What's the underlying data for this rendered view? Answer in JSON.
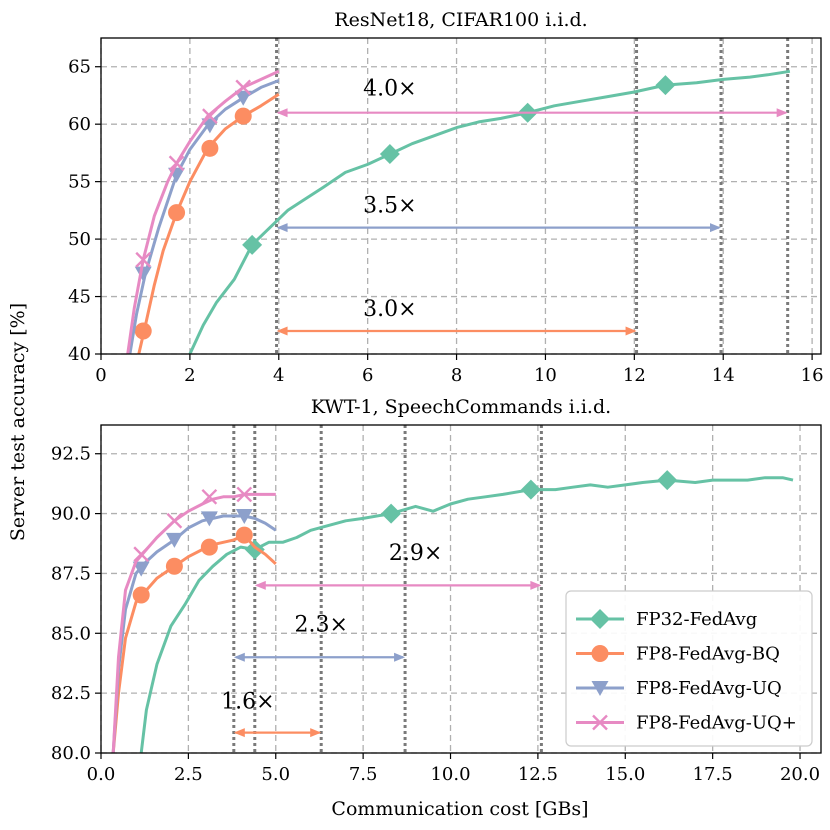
{
  "y_axis_label": "Server test accuracy [%]",
  "x_axis_label": "Communication cost [GBs]",
  "legend": {
    "position": "lower-right",
    "entries": [
      {
        "name": "FP32-FedAvg",
        "color": "#66c2a5",
        "marker": "diamond"
      },
      {
        "name": "FP8-FedAvg-BQ",
        "color": "#fc8d62",
        "marker": "circle"
      },
      {
        "name": "FP8-FedAvg-UQ",
        "color": "#8da0cb",
        "marker": "triangle-down"
      },
      {
        "name": "FP8-FedAvg-UQ+",
        "color": "#e78ac3",
        "marker": "x"
      }
    ]
  },
  "chart_data": [
    {
      "type": "line",
      "title": "ResNet18, CIFAR100 i.i.d.",
      "xlabel": "",
      "ylabel": "Server test accuracy [%]",
      "xlim": [
        0,
        16.2
      ],
      "ylim": [
        40,
        67.5
      ],
      "xticks": [
        0,
        2,
        4,
        6,
        8,
        10,
        12,
        14,
        16
      ],
      "yticks": [
        40,
        45,
        50,
        55,
        60,
        65
      ],
      "grid": true,
      "series": [
        {
          "name": "FP32-FedAvg",
          "color": "#66c2a5",
          "marker": "diamond",
          "x": [
            2.0,
            2.3,
            2.6,
            3.0,
            3.4,
            3.8,
            4.2,
            4.6,
            5.0,
            5.5,
            6.0,
            6.5,
            7.0,
            7.5,
            8.0,
            8.5,
            9.0,
            9.6,
            10.2,
            10.8,
            11.4,
            12.0,
            12.7,
            13.4,
            14.0,
            14.6,
            15.0,
            15.5
          ],
          "y": [
            40.0,
            42.5,
            44.5,
            46.5,
            49.5,
            51.0,
            52.5,
            53.5,
            54.5,
            55.8,
            56.5,
            57.4,
            58.3,
            59.0,
            59.7,
            60.2,
            60.5,
            61.0,
            61.6,
            62.0,
            62.4,
            62.8,
            63.4,
            63.6,
            63.9,
            64.1,
            64.3,
            64.6
          ],
          "marker_x": [
            3.4,
            6.5,
            9.6,
            12.7
          ],
          "marker_y": [
            49.5,
            57.4,
            61.0,
            63.4
          ]
        },
        {
          "name": "FP8-FedAvg-BQ",
          "color": "#fc8d62",
          "marker": "circle",
          "x": [
            0.85,
            1.0,
            1.2,
            1.4,
            1.7,
            2.0,
            2.4,
            2.8,
            3.2,
            3.6,
            4.0
          ],
          "y": [
            40.0,
            42.5,
            46.0,
            49.0,
            52.3,
            55.0,
            57.9,
            59.6,
            60.7,
            61.6,
            62.6
          ],
          "marker_x": [
            0.95,
            1.7,
            2.45,
            3.2
          ],
          "marker_y": [
            42.0,
            52.3,
            57.9,
            60.7
          ]
        },
        {
          "name": "FP8-FedAvg-UQ",
          "color": "#8da0cb",
          "marker": "triangle-down",
          "x": [
            0.65,
            0.8,
            1.0,
            1.3,
            1.7,
            2.0,
            2.4,
            2.8,
            3.2,
            3.6,
            4.0
          ],
          "y": [
            40.0,
            43.5,
            47.0,
            51.0,
            55.6,
            57.8,
            59.9,
            61.3,
            62.3,
            63.2,
            63.8
          ],
          "marker_x": [
            0.95,
            1.7,
            2.45,
            3.2
          ],
          "marker_y": [
            47.0,
            55.6,
            59.9,
            62.3
          ]
        },
        {
          "name": "FP8-FedAvg-UQ+",
          "color": "#e78ac3",
          "marker": "x",
          "x": [
            0.6,
            0.75,
            0.95,
            1.2,
            1.5,
            1.7,
            2.0,
            2.4,
            2.8,
            3.2,
            3.6,
            4.0
          ],
          "y": [
            40.0,
            44.0,
            48.2,
            52.0,
            55.0,
            56.6,
            58.5,
            60.7,
            62.0,
            63.2,
            63.9,
            64.6
          ],
          "marker_x": [
            0.95,
            1.7,
            2.45,
            3.2
          ],
          "marker_y": [
            48.2,
            56.6,
            60.7,
            63.2
          ]
        }
      ],
      "vlines": [
        3.95,
        12.05,
        13.95,
        15.45
      ],
      "arrows": [
        {
          "x0": 3.95,
          "x1": 15.45,
          "y": 61.0,
          "label": "4.0×",
          "label_x": 6.5,
          "label_y": 63.2,
          "color": "#e78ac3"
        },
        {
          "x0": 3.95,
          "x1": 13.95,
          "y": 51.0,
          "label": "3.5×",
          "label_x": 6.5,
          "label_y": 53.0,
          "color": "#8da0cb"
        },
        {
          "x0": 3.95,
          "x1": 12.05,
          "y": 42.0,
          "label": "3.0×",
          "label_x": 6.5,
          "label_y": 44.0,
          "color": "#fc8d62"
        }
      ]
    },
    {
      "type": "line",
      "title": "KWT-1, SpeechCommands i.i.d.",
      "xlabel": "Communication cost [GBs]",
      "ylabel": "Server test accuracy [%]",
      "xlim": [
        0,
        20.6
      ],
      "ylim": [
        80,
        93.7
      ],
      "xticks": [
        0.0,
        2.5,
        5.0,
        7.5,
        10.0,
        12.5,
        15.0,
        17.5,
        20.0
      ],
      "xtick_labels": [
        "0.0",
        "2.5",
        "5.0",
        "7.5",
        "10.0",
        "12.5",
        "15.0",
        "17.5",
        "20.0"
      ],
      "yticks": [
        80.0,
        82.5,
        85.0,
        87.5,
        90.0,
        92.5
      ],
      "ytick_labels": [
        "80.0",
        "82.5",
        "85.0",
        "87.5",
        "90.0",
        "92.5"
      ],
      "grid": true,
      "series": [
        {
          "name": "FP32-FedAvg",
          "color": "#66c2a5",
          "marker": "diamond",
          "x": [
            1.15,
            1.3,
            1.6,
            2.0,
            2.4,
            2.8,
            3.2,
            3.6,
            4.0,
            4.4,
            4.8,
            5.2,
            5.6,
            6.0,
            6.5,
            7.0,
            7.5,
            8.3,
            9.0,
            9.5,
            10.0,
            10.5,
            11.0,
            11.5,
            12.3,
            13.0,
            13.5,
            14.0,
            14.5,
            15.0,
            15.5,
            16.2,
            17.0,
            17.5,
            18.0,
            18.5,
            19.0,
            19.5,
            19.8
          ],
          "y": [
            80.0,
            81.8,
            83.7,
            85.3,
            86.2,
            87.2,
            87.8,
            88.3,
            88.6,
            88.5,
            88.8,
            88.8,
            89.0,
            89.3,
            89.5,
            89.7,
            89.8,
            90.0,
            90.3,
            90.1,
            90.4,
            90.6,
            90.7,
            90.8,
            91.0,
            91.0,
            91.1,
            91.2,
            91.1,
            91.2,
            91.3,
            91.4,
            91.3,
            91.4,
            91.4,
            91.4,
            91.5,
            91.5,
            91.4
          ],
          "marker_x": [
            4.4,
            8.3,
            12.3,
            16.2
          ],
          "marker_y": [
            88.5,
            90.0,
            91.0,
            91.4
          ]
        },
        {
          "name": "FP8-FedAvg-BQ",
          "color": "#fc8d62",
          "marker": "circle",
          "x": [
            0.35,
            0.5,
            0.7,
            1.0,
            1.3,
            1.6,
            2.1,
            2.5,
            2.9,
            3.2,
            3.5,
            3.8,
            4.1,
            4.4,
            4.7,
            5.0
          ],
          "y": [
            80.0,
            82.5,
            84.8,
            86.3,
            86.8,
            87.3,
            87.8,
            88.2,
            88.5,
            88.7,
            88.8,
            88.9,
            89.1,
            88.6,
            88.3,
            87.9
          ],
          "marker_x": [
            1.15,
            2.1,
            3.1,
            4.1
          ],
          "marker_y": [
            86.6,
            87.8,
            88.6,
            89.1
          ]
        },
        {
          "name": "FP8-FedAvg-UQ",
          "color": "#8da0cb",
          "marker": "triangle-down",
          "x": [
            0.35,
            0.5,
            0.7,
            1.0,
            1.3,
            1.6,
            2.1,
            2.5,
            2.9,
            3.2,
            3.5,
            3.8,
            4.1,
            4.4,
            4.7,
            5.0
          ],
          "y": [
            80.0,
            83.5,
            86.0,
            87.5,
            88.0,
            88.4,
            88.9,
            89.4,
            89.7,
            89.8,
            89.9,
            89.9,
            89.9,
            89.8,
            89.6,
            89.3
          ],
          "marker_x": [
            1.15,
            2.1,
            3.1,
            4.1
          ],
          "marker_y": [
            87.7,
            88.9,
            89.8,
            89.9
          ]
        },
        {
          "name": "FP8-FedAvg-UQ+",
          "color": "#e78ac3",
          "marker": "x",
          "x": [
            0.35,
            0.5,
            0.7,
            1.0,
            1.3,
            1.6,
            2.1,
            2.5,
            2.9,
            3.2,
            3.5,
            3.8,
            4.1,
            4.4,
            4.7,
            5.0
          ],
          "y": [
            80.0,
            84.0,
            86.8,
            88.0,
            88.5,
            89.0,
            89.7,
            90.1,
            90.4,
            90.6,
            90.7,
            90.7,
            90.8,
            90.8,
            90.8,
            90.8
          ],
          "marker_x": [
            1.15,
            2.1,
            3.1,
            4.1
          ],
          "marker_y": [
            88.3,
            89.7,
            90.7,
            90.8
          ]
        }
      ],
      "vlines": [
        3.8,
        4.4,
        6.3,
        8.7,
        12.6
      ],
      "arrows": [
        {
          "x0": 4.4,
          "x1": 12.6,
          "y": 87.0,
          "label": "2.9×",
          "label_x": 9.0,
          "label_y": 88.4,
          "color": "#e78ac3"
        },
        {
          "x0": 3.8,
          "x1": 8.7,
          "y": 84.0,
          "label": "2.3×",
          "label_x": 6.3,
          "label_y": 85.4,
          "color": "#8da0cb"
        },
        {
          "x0": 3.8,
          "x1": 6.3,
          "y": 80.85,
          "label": "1.6×",
          "label_x": 4.2,
          "label_y": 82.2,
          "color": "#fc8d62"
        }
      ]
    }
  ]
}
